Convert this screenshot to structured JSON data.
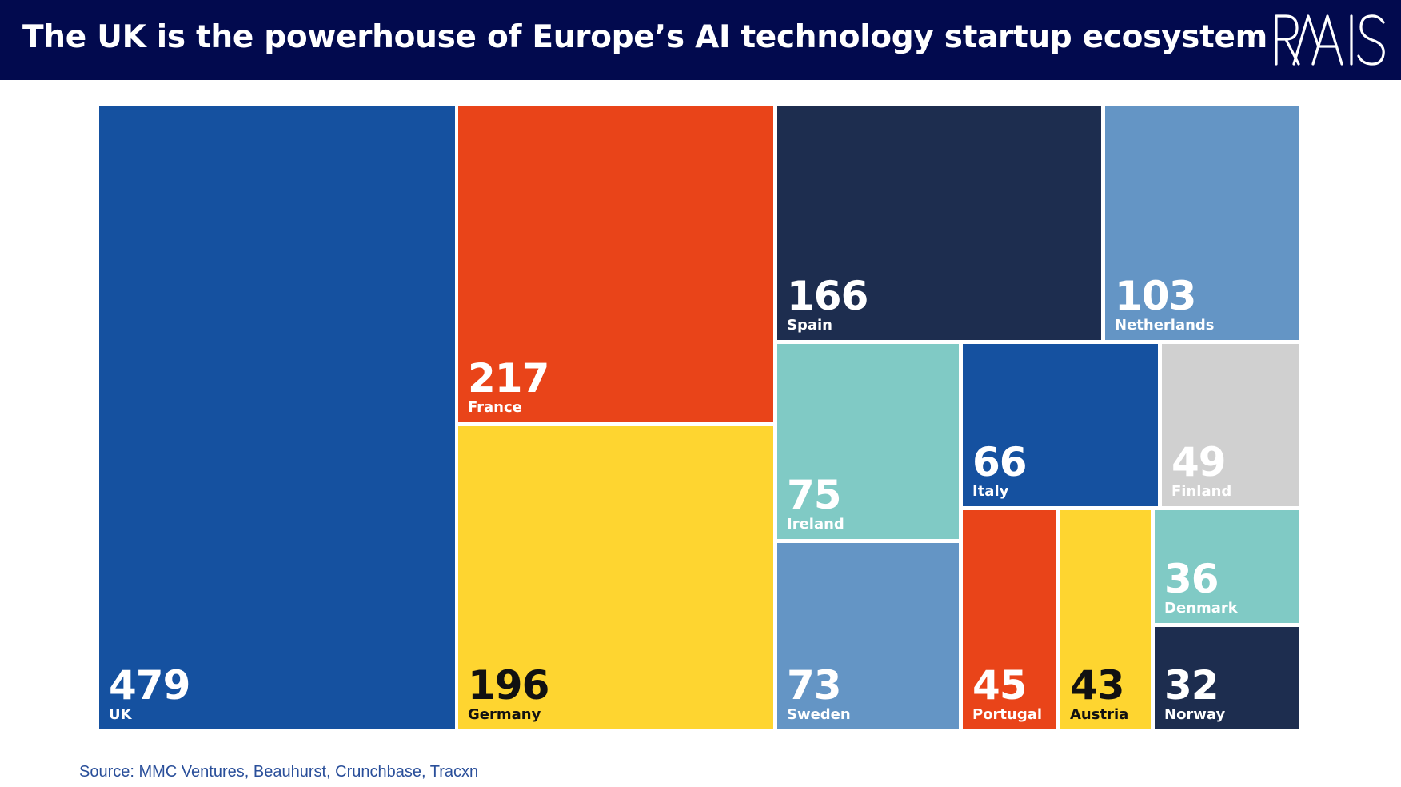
{
  "header": {
    "title": "The UK is the powerhouse of Europe’s AI technology startup ecosystem",
    "logo_text": "RAAIS"
  },
  "colors": {
    "header_bg": "#020a4e",
    "blue": "#1551a0",
    "red": "#e94419",
    "yellow": "#fed530",
    "navy": "#1d2d4f",
    "light_blue": "#6495c5",
    "teal": "#80cac5",
    "grey": "#d0d0d0"
  },
  "chart_data": {
    "type": "treemap",
    "title": "The UK is the powerhouse of Europe’s AI technology startup ecosystem",
    "source": "Source: MMC Ventures, Beauhurst, Crunchbase, Tracxn",
    "items": [
      {
        "id": "uk",
        "label": "UK",
        "value": 479,
        "color": "#1551a0",
        "text_color": "#ffffff"
      },
      {
        "id": "france",
        "label": "France",
        "value": 217,
        "color": "#e94419",
        "text_color": "#ffffff"
      },
      {
        "id": "germany",
        "label": "Germany",
        "value": 196,
        "color": "#fed530",
        "text_color": "#111111"
      },
      {
        "id": "spain",
        "label": "Spain",
        "value": 166,
        "color": "#1d2d4f",
        "text_color": "#ffffff"
      },
      {
        "id": "netherlands",
        "label": "Netherlands",
        "value": 103,
        "color": "#6495c5",
        "text_color": "#ffffff"
      },
      {
        "id": "ireland",
        "label": "Ireland",
        "value": 75,
        "color": "#80cac5",
        "text_color": "#ffffff"
      },
      {
        "id": "sweden",
        "label": "Sweden",
        "value": 73,
        "color": "#6495c5",
        "text_color": "#ffffff"
      },
      {
        "id": "italy",
        "label": "Italy",
        "value": 66,
        "color": "#1551a0",
        "text_color": "#ffffff"
      },
      {
        "id": "finland",
        "label": "Finland",
        "value": 49,
        "color": "#d0d0d0",
        "text_color": "#ffffff"
      },
      {
        "id": "portugal",
        "label": "Portugal",
        "value": 45,
        "color": "#e94419",
        "text_color": "#ffffff"
      },
      {
        "id": "austria",
        "label": "Austria",
        "value": 43,
        "color": "#fed530",
        "text_color": "#111111"
      },
      {
        "id": "denmark",
        "label": "Denmark",
        "value": 36,
        "color": "#80cac5",
        "text_color": "#ffffff"
      },
      {
        "id": "norway",
        "label": "Norway",
        "value": 32,
        "color": "#1d2d4f",
        "text_color": "#ffffff"
      }
    ]
  }
}
